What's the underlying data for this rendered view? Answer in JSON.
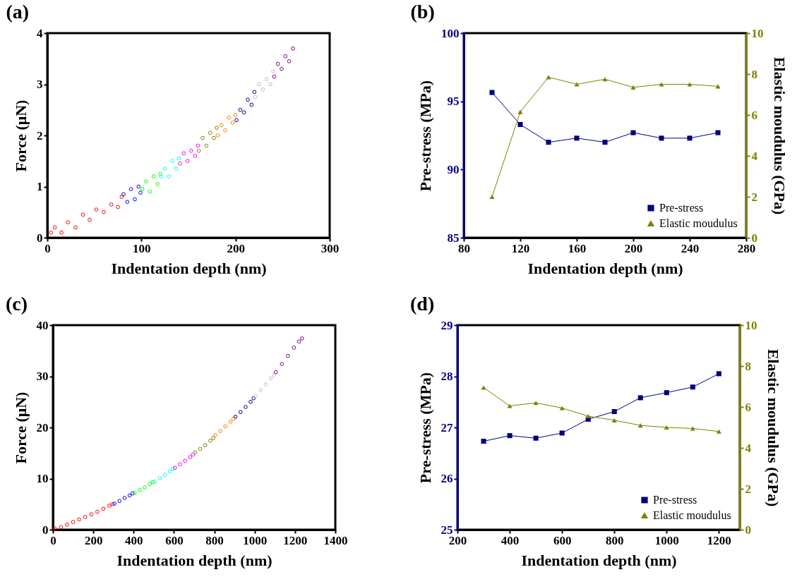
{
  "chart_data": [
    {
      "type": "scatter",
      "title": "(a)",
      "xlabel": "Indentation depth (nm)",
      "ylabel": "Force (μN)",
      "xlim": [
        0,
        300
      ],
      "xticks": [
        0,
        100,
        200,
        300
      ],
      "ylim": [
        0,
        4
      ],
      "yticks": [
        0,
        1,
        2,
        3,
        4
      ],
      "marker": "circle",
      "series": [
        {
          "color": "#ff0000",
          "x": [
            4,
            8,
            15,
            22,
            30,
            38,
            45,
            52,
            60,
            68,
            75,
            79
          ],
          "values": [
            0.1,
            0.2,
            0.1,
            0.3,
            0.2,
            0.45,
            0.35,
            0.55,
            0.5,
            0.65,
            0.6,
            0.8
          ]
        },
        {
          "color": "#0000ff",
          "x": [
            81,
            85,
            89,
            93,
            97,
            99
          ],
          "values": [
            0.85,
            0.7,
            0.95,
            0.75,
            1.0,
            0.88
          ]
        },
        {
          "color": "#00ff00",
          "x": [
            101,
            105,
            109,
            113,
            117,
            120
          ],
          "values": [
            0.95,
            1.1,
            0.9,
            1.2,
            1.05,
            1.25
          ]
        },
        {
          "color": "#00ffff",
          "x": [
            121,
            125,
            129,
            133,
            137,
            140
          ],
          "values": [
            1.2,
            1.35,
            1.2,
            1.5,
            1.35,
            1.55
          ]
        },
        {
          "color": "#ff00ff",
          "x": [
            141,
            145,
            149,
            153,
            157,
            160
          ],
          "values": [
            1.45,
            1.65,
            1.5,
            1.7,
            1.6,
            1.8
          ]
        },
        {
          "color": "#808000",
          "x": [
            161,
            165,
            169,
            173,
            177,
            180
          ],
          "values": [
            1.7,
            1.95,
            1.8,
            2.05,
            1.95,
            2.15
          ]
        },
        {
          "color": "#ff8000",
          "x": [
            181,
            185,
            189,
            193,
            197,
            200
          ],
          "values": [
            2.0,
            2.2,
            2.1,
            2.35,
            2.25,
            2.4
          ]
        },
        {
          "color": "#000080",
          "x": [
            201,
            205,
            209,
            213,
            217,
            220
          ],
          "values": [
            2.3,
            2.5,
            2.45,
            2.7,
            2.6,
            2.85
          ]
        },
        {
          "color": "#c0c0c0",
          "x": [
            221,
            225,
            229,
            233,
            237,
            240
          ],
          "values": [
            2.75,
            3.0,
            2.9,
            3.1,
            3.0,
            3.25
          ]
        },
        {
          "color": "#800080",
          "x": [
            241,
            245,
            249,
            253,
            257,
            261
          ],
          "values": [
            3.15,
            3.4,
            3.3,
            3.55,
            3.45,
            3.7
          ]
        }
      ]
    },
    {
      "type": "line",
      "title": "(b)",
      "xlabel": "Indentation depth (nm)",
      "ylabel": "Pre-stress (MPa)",
      "y2label": "Elastic moudulus (GPa)",
      "x": [
        100,
        120,
        140,
        160,
        180,
        200,
        220,
        240,
        260
      ],
      "xlim": [
        80,
        280
      ],
      "xticks": [
        80,
        120,
        160,
        200,
        240,
        280
      ],
      "ylim": [
        85,
        100
      ],
      "yticks": [
        85,
        90,
        95,
        100
      ],
      "y2lim": [
        0,
        10
      ],
      "y2ticks": [
        0,
        2,
        4,
        6,
        8,
        10
      ],
      "legend": "bottom right",
      "series": [
        {
          "name": "Pre-stress",
          "color": "#000080",
          "marker": "square",
          "values": [
            95.65,
            93.3,
            92.0,
            92.3,
            92.0,
            92.7,
            92.3,
            92.3,
            92.7
          ]
        },
        {
          "name": "Elastic moudulus",
          "color": "#808000",
          "marker": "triangle",
          "axis": "y2",
          "values": [
            2.0,
            6.15,
            7.85,
            7.5,
            7.75,
            7.35,
            7.5,
            7.5,
            7.4
          ]
        }
      ]
    },
    {
      "type": "scatter",
      "title": "(c)",
      "xlabel": "Indentation depth (nm)",
      "ylabel": "Force (μN)",
      "xlim": [
        0,
        1400
      ],
      "xticks": [
        0,
        200,
        400,
        600,
        800,
        1000,
        1200,
        1400
      ],
      "ylim": [
        0,
        40
      ],
      "yticks": [
        0,
        10,
        20,
        30,
        40
      ],
      "marker": "circle",
      "series": [
        {
          "color": "#ff0000",
          "x": [
            10,
            40,
            70,
            100,
            130,
            160,
            190,
            220,
            250,
            280,
            295
          ],
          "values": [
            0.2,
            0.5,
            1.0,
            1.5,
            2.0,
            2.5,
            3.0,
            3.5,
            4.1,
            4.7,
            5.0
          ]
        },
        {
          "color": "#0000ff",
          "x": [
            305,
            330,
            355,
            380,
            395
          ],
          "values": [
            5.1,
            5.6,
            6.2,
            6.7,
            7.1
          ]
        },
        {
          "color": "#00ff00",
          "x": [
            405,
            430,
            455,
            480,
            495
          ],
          "values": [
            7.2,
            7.8,
            8.3,
            8.9,
            9.3
          ]
        },
        {
          "color": "#00ffff",
          "x": [
            505,
            530,
            555,
            580,
            595
          ],
          "values": [
            9.4,
            10.1,
            10.7,
            11.4,
            11.9
          ]
        },
        {
          "color": "#ff00ff",
          "x": [
            605,
            630,
            655,
            680,
            695
          ],
          "values": [
            12.1,
            12.8,
            13.5,
            14.2,
            14.7
          ]
        },
        {
          "color": "#808000",
          "x": [
            705,
            730,
            755,
            780,
            795
          ],
          "values": [
            15.1,
            15.8,
            16.5,
            17.4,
            17.9
          ]
        },
        {
          "color": "#ff8000",
          "x": [
            805,
            830,
            855,
            880,
            895
          ],
          "values": [
            18.5,
            19.3,
            20.2,
            21.1,
            21.7
          ]
        },
        {
          "color": "#000080",
          "x": [
            905,
            930,
            955,
            980,
            995
          ],
          "values": [
            22.1,
            23.0,
            24.0,
            25.0,
            25.7
          ]
        },
        {
          "color": "#c0c0c0",
          "x": [
            1005,
            1030,
            1055,
            1080,
            1095
          ],
          "values": [
            26.2,
            27.3,
            28.4,
            29.6,
            30.3
          ]
        },
        {
          "color": "#800080",
          "x": [
            1105,
            1135,
            1165,
            1195,
            1220,
            1235
          ],
          "values": [
            30.8,
            32.4,
            34.0,
            35.6,
            36.8,
            37.4
          ]
        }
      ]
    },
    {
      "type": "line",
      "title": "(d)",
      "xlabel": "Indentation depth (nm)",
      "ylabel": "Pre-stress (MPa)",
      "y2label": "Elastic moudulus (GPa)",
      "x": [
        300,
        400,
        500,
        600,
        700,
        800,
        900,
        1000,
        1100,
        1200
      ],
      "xlim": [
        200,
        1280
      ],
      "xticks": [
        200,
        400,
        600,
        800,
        1000,
        1200
      ],
      "ylim": [
        25,
        29
      ],
      "yticks": [
        25,
        26,
        27,
        28,
        29
      ],
      "y2lim": [
        0,
        10
      ],
      "y2ticks": [
        0,
        2,
        4,
        6,
        8,
        10
      ],
      "legend": "bottom right",
      "series": [
        {
          "name": "Pre-stress",
          "color": "#000080",
          "marker": "square",
          "values": [
            26.73,
            26.84,
            26.79,
            26.89,
            27.16,
            27.31,
            27.58,
            27.68,
            27.79,
            28.05
          ]
        },
        {
          "name": "Elastic moudulus",
          "color": "#808000",
          "marker": "triangle",
          "axis": "y2",
          "values": [
            6.95,
            6.05,
            6.2,
            5.95,
            5.55,
            5.35,
            5.1,
            5.0,
            4.95,
            4.8
          ]
        }
      ]
    }
  ]
}
